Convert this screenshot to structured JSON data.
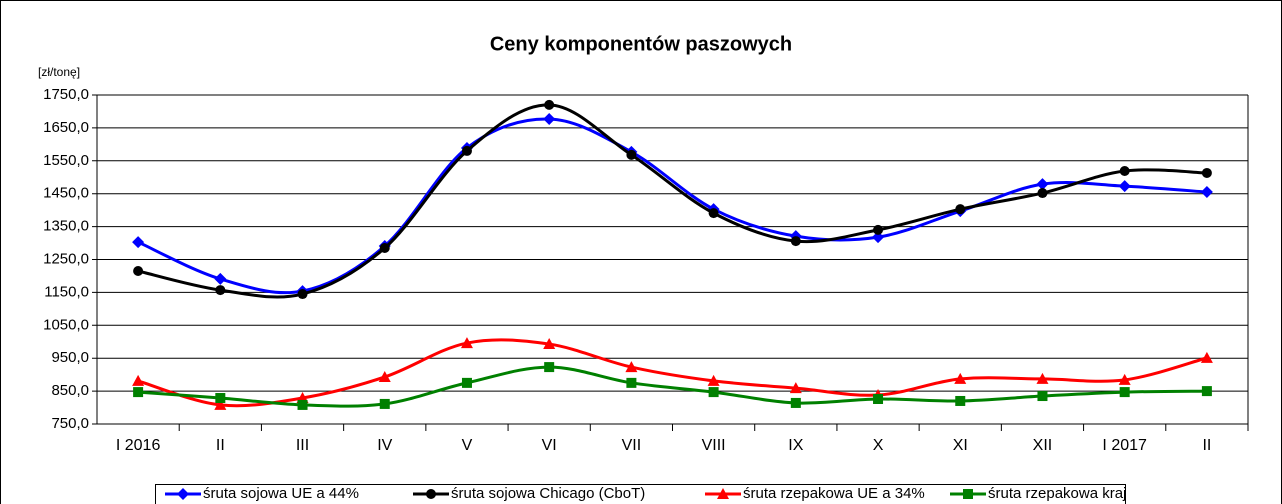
{
  "chart_data": {
    "type": "line",
    "title": "Ceny komponentów paszowych",
    "y_unit": "[zł/tonę]",
    "categories": [
      "I 2016",
      "II",
      "III",
      "IV",
      "V",
      "VI",
      "VII",
      "VIII",
      "IX",
      "X",
      "XI",
      "XII",
      "I 2017",
      "II"
    ],
    "ylim": [
      750,
      1750
    ],
    "yticks": [
      {
        "value": 750,
        "label": "750,0"
      },
      {
        "value": 850,
        "label": "850,0"
      },
      {
        "value": 950,
        "label": "950,0"
      },
      {
        "value": 1050,
        "label": "1050,0"
      },
      {
        "value": 1150,
        "label": "1150,0"
      },
      {
        "value": 1250,
        "label": "1250,0"
      },
      {
        "value": 1350,
        "label": "1350,0"
      },
      {
        "value": 1450,
        "label": "1450,0"
      },
      {
        "value": 1550,
        "label": "1550,0"
      },
      {
        "value": 1650,
        "label": "1650,0"
      },
      {
        "value": 1750,
        "label": "1750,0"
      }
    ],
    "grid": true,
    "legend": "bottom",
    "series": [
      {
        "name": "śruta sojowa UE a 44%",
        "color": "#0000ff",
        "marker": "diamond",
        "values": [
          1303,
          1191,
          1154,
          1291,
          1589,
          1677,
          1577,
          1403,
          1321,
          1318,
          1397,
          1479,
          1473,
          1455
        ]
      },
      {
        "name": "śruta sojowa Chicago (CboT)",
        "color": "#000000",
        "marker": "circle",
        "values": [
          1215,
          1157,
          1145,
          1285,
          1580,
          1720,
          1568,
          1391,
          1306,
          1340,
          1403,
          1452,
          1519,
          1513
        ]
      },
      {
        "name": "śruta rzepakowa UE a 34%",
        "color": "#ff0000",
        "marker": "triangle",
        "values": [
          881,
          808,
          829,
          893,
          996,
          993,
          923,
          881,
          859,
          838,
          887,
          887,
          884,
          951
        ]
      },
      {
        "name": "śruta rzepakowa kraj",
        "color": "#008000",
        "marker": "square",
        "values": [
          847,
          829,
          808,
          811,
          875,
          923,
          875,
          847,
          814,
          826,
          820,
          835,
          847,
          850
        ]
      }
    ]
  }
}
